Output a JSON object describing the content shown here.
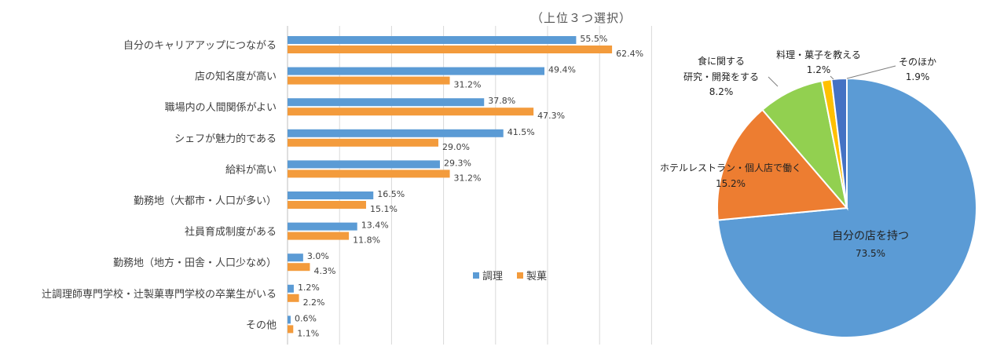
{
  "subtitle": "（上位３つ選択）",
  "chart_data": [
    {
      "type": "bar",
      "orientation": "horizontal",
      "categories": [
        "自分のキャリアアップにつながる",
        "店の知名度が高い",
        "職場内の人間関係がよい",
        "シェフが魅力的である",
        "給料が高い",
        "勤務地（大都市・人口が多い）",
        "社員育成制度がある",
        "勤務地（地方・田舎・人口少なめ）",
        "辻調理師専門学校・辻製菓専門学校の卒業生がいる",
        "その他"
      ],
      "series": [
        {
          "name": "調理",
          "color": "#5b9bd5",
          "values": [
            55.5,
            49.4,
            37.8,
            41.5,
            29.3,
            16.5,
            13.4,
            3.0,
            1.2,
            0.6
          ],
          "labels": [
            "55.5%",
            "49.4%",
            "37.8%",
            "41.5%",
            "29.3%",
            "16.5%",
            "13.4%",
            "3.0%",
            "1.2%",
            "0.6%"
          ]
        },
        {
          "name": "製菓",
          "color": "#f39b3c",
          "values": [
            62.4,
            31.2,
            47.3,
            29.0,
            31.2,
            15.1,
            11.8,
            4.3,
            2.2,
            1.1
          ],
          "labels": [
            "62.4%",
            "31.2%",
            "47.3%",
            "29.0%",
            "31.2%",
            "15.1%",
            "11.8%",
            "4.3%",
            "2.2%",
            "1.1%"
          ]
        }
      ],
      "xlim": [
        0,
        70
      ],
      "grid": true,
      "legend": "bottom-right"
    },
    {
      "type": "pie",
      "slices": [
        {
          "label": "自分の店を持つ",
          "value": 73.5,
          "value_label": "73.5%",
          "color": "#5b9bd5"
        },
        {
          "label": "ホテルレストラン・個人店で働く",
          "value": 15.2,
          "value_label": "15.2%",
          "color": "#ed7d31"
        },
        {
          "label_lines": [
            "食に関する",
            "研究・開発をする"
          ],
          "value": 8.2,
          "value_label": "8.2%",
          "color": "#92d050"
        },
        {
          "label": "料理・菓子を教える",
          "value": 1.2,
          "value_label": "1.2%",
          "color": "#ffc000"
        },
        {
          "label": "そのほか",
          "value": 1.9,
          "value_label": "1.9%",
          "color": "#4472c4"
        }
      ]
    }
  ]
}
